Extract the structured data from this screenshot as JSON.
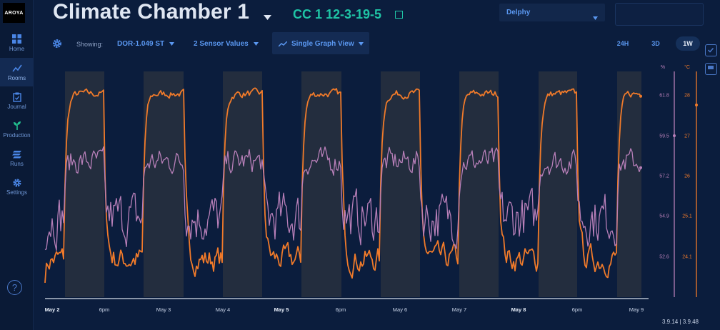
{
  "app": {
    "logo": "AROYA"
  },
  "sidebar": {
    "items": [
      {
        "label": "Home",
        "icon": "grid-icon"
      },
      {
        "label": "Rooms",
        "icon": "chart-line-icon",
        "active": true
      },
      {
        "label": "Journal",
        "icon": "clipboard-icon"
      },
      {
        "label": "Production",
        "icon": "sprout-icon"
      },
      {
        "label": "Runs",
        "icon": "runs-icon"
      },
      {
        "label": "Settings",
        "icon": "gear-icon"
      }
    ],
    "help": "?"
  },
  "header": {
    "title": "Climate Chamber 1",
    "subtitle": "CC 1 12-3-19-5",
    "org": "Delphy"
  },
  "toolbar": {
    "showing_label": "Showing:",
    "sensor": "DOR-1.049 ST",
    "values": "2 Sensor Values",
    "view": "Single Graph View",
    "ranges": [
      "24H",
      "3D",
      "1W"
    ],
    "active_range": "1W"
  },
  "chart_data": {
    "type": "line",
    "x_ticks": [
      {
        "label": "May 2",
        "bold": true
      },
      {
        "label": "6pm",
        "bold": false
      },
      {
        "label": "May 3",
        "bold": false
      },
      {
        "label": "May 4",
        "bold": false
      },
      {
        "label": "May 5",
        "bold": true
      },
      {
        "label": "6pm",
        "bold": false
      },
      {
        "label": "May 6",
        "bold": false
      },
      {
        "label": "May 7",
        "bold": false
      },
      {
        "label": "May 8",
        "bold": true
      },
      {
        "label": "6pm",
        "bold": false
      },
      {
        "label": "May 9",
        "bold": false
      }
    ],
    "y_axis_humidity": {
      "unit": "%",
      "ticks": [
        "61.8",
        "59.5",
        "57.2",
        "54.9",
        "52.6"
      ],
      "color": "#b77fb8"
    },
    "y_axis_temperature": {
      "unit": "°C",
      "ticks": [
        "28",
        "27",
        "26",
        "25.1",
        "24.1"
      ],
      "color": "#f07a2a"
    },
    "series": [
      {
        "unit": "°C",
        "color": "#f07a2a",
        "day_level": 28.4,
        "night_level": 24.2,
        "ylim": [
          23.2,
          29.0
        ]
      },
      {
        "unit": "%",
        "color": "#b77fb8",
        "day_level": 58.5,
        "night_level": 55.2,
        "ylim": [
          50.4,
          63.9
        ]
      }
    ],
    "shading": "lights-on periods",
    "grid": false
  },
  "footer": {
    "version": "3.9.14 | 3.9.48"
  }
}
